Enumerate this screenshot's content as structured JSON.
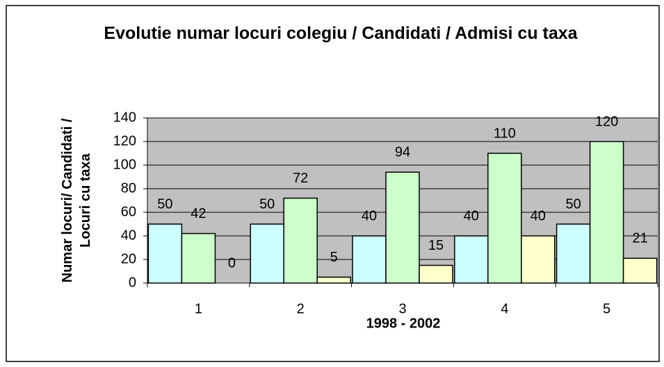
{
  "chart_data": {
    "type": "bar",
    "title": "Evolutie numar locuri colegiu / Candidati / Admisi cu taxa",
    "x_label": "1998 - 2002",
    "y_label": "Numar locuri/ Candidati / Locuri cu taxa",
    "categories": [
      "1",
      "2",
      "3",
      "4",
      "5"
    ],
    "series": [
      {
        "color": "#ccffff",
        "values": [
          50,
          50,
          40,
          40,
          50
        ]
      },
      {
        "color": "#ccffcc",
        "values": [
          42,
          72,
          94,
          110,
          120
        ]
      },
      {
        "color": "#ffffcc",
        "values": [
          0,
          5,
          15,
          40,
          21
        ]
      }
    ],
    "ylim": [
      0,
      140
    ],
    "yticks": [
      0,
      20,
      40,
      60,
      80,
      100,
      120,
      140
    ],
    "grid": true
  }
}
